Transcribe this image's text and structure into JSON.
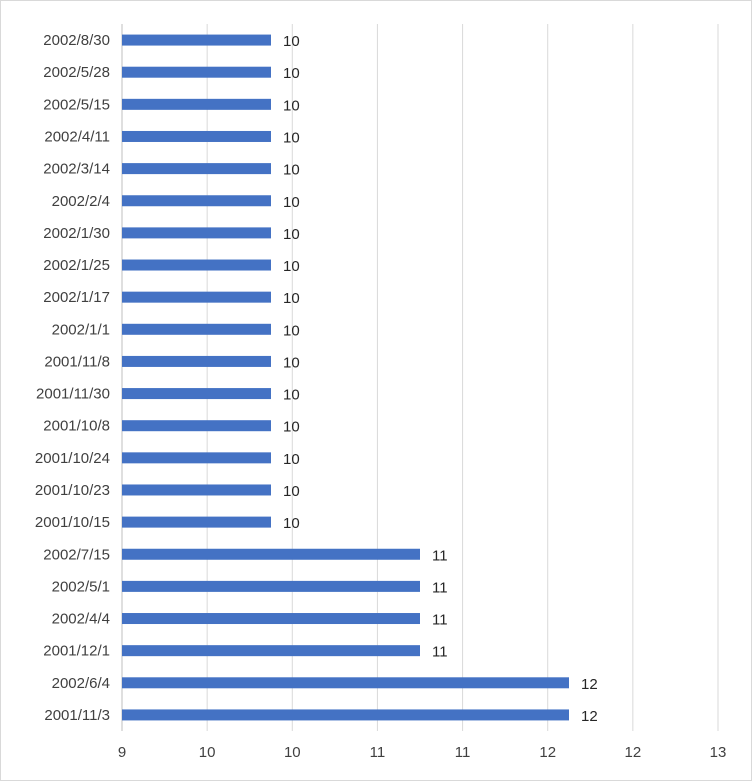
{
  "chart_data": {
    "type": "bar",
    "orientation": "horizontal",
    "title": "",
    "xlabel": "",
    "ylabel": "",
    "categories": [
      "2002/8/30",
      "2002/5/28",
      "2002/5/15",
      "2002/4/11",
      "2002/3/14",
      "2002/2/4",
      "2002/1/30",
      "2002/1/25",
      "2002/1/17",
      "2002/1/1",
      "2001/11/8",
      "2001/11/30",
      "2001/10/8",
      "2001/10/24",
      "2001/10/23",
      "2001/10/15",
      "2002/7/15",
      "2002/5/1",
      "2002/4/4",
      "2001/12/1",
      "2002/6/4",
      "2001/11/3"
    ],
    "values": [
      10,
      10,
      10,
      10,
      10,
      10,
      10,
      10,
      10,
      10,
      10,
      10,
      10,
      10,
      10,
      10,
      11,
      11,
      11,
      11,
      12,
      12
    ],
    "x_ticks": [
      "9",
      "10",
      "10",
      "11",
      "11",
      "12",
      "12",
      "13"
    ],
    "xlim": [
      9,
      13
    ],
    "grid": "vertical",
    "legend": "none",
    "colors": {
      "bar": "#4472c4",
      "grid": "#d9d9d9",
      "axis": "#bfbfbf",
      "text": "#404040"
    }
  }
}
